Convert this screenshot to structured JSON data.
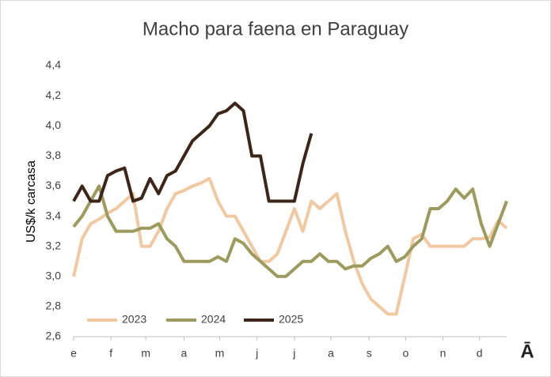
{
  "chart_data": {
    "type": "line",
    "title": "Macho para faena en Paraguay",
    "ylabel": "US$/k carcasa",
    "logo": "Ā",
    "x": [
      0,
      1,
      2,
      3,
      4,
      5,
      6,
      7,
      8,
      9,
      10,
      11,
      12,
      13,
      14,
      15,
      16,
      17,
      18,
      19,
      20,
      21,
      22,
      23,
      24,
      25,
      26,
      27,
      28,
      29,
      30,
      31,
      32,
      33,
      34,
      35,
      36,
      37,
      38,
      39,
      40,
      41,
      42,
      43,
      44,
      45,
      46,
      47,
      48,
      49,
      50,
      51
    ],
    "xlim": [
      0,
      51
    ],
    "xticks": [
      {
        "value": 0,
        "label": "e"
      },
      {
        "value": 4.4,
        "label": "f"
      },
      {
        "value": 8.5,
        "label": "m"
      },
      {
        "value": 13,
        "label": "a"
      },
      {
        "value": 17.2,
        "label": "m"
      },
      {
        "value": 21.6,
        "label": "j"
      },
      {
        "value": 26,
        "label": "j"
      },
      {
        "value": 30.3,
        "label": "a"
      },
      {
        "value": 34.8,
        "label": "s"
      },
      {
        "value": 39.1,
        "label": "o"
      },
      {
        "value": 43.5,
        "label": "n"
      },
      {
        "value": 47.8,
        "label": "d"
      }
    ],
    "ylim": [
      2.6,
      4.4
    ],
    "yticks": [
      {
        "value": 2.6,
        "label": "2,6"
      },
      {
        "value": 2.8,
        "label": "2,8"
      },
      {
        "value": 3.0,
        "label": "3,0"
      },
      {
        "value": 3.2,
        "label": "3,2"
      },
      {
        "value": 3.4,
        "label": "3,4"
      },
      {
        "value": 3.6,
        "label": "3,6"
      },
      {
        "value": 3.8,
        "label": "3,8"
      },
      {
        "value": 4.0,
        "label": "4,0"
      },
      {
        "value": 4.2,
        "label": "4,2"
      },
      {
        "value": 4.4,
        "label": "4,4"
      }
    ],
    "grid": false,
    "legend": "lower left",
    "series": [
      {
        "name": "2023",
        "color": "#f1c8a0",
        "values": [
          3.0,
          3.25,
          3.35,
          3.38,
          3.42,
          3.45,
          3.5,
          3.55,
          3.2,
          3.2,
          3.3,
          3.45,
          3.55,
          3.57,
          3.6,
          3.62,
          3.65,
          3.5,
          3.4,
          3.4,
          3.3,
          3.2,
          3.1,
          3.1,
          3.15,
          3.3,
          3.45,
          3.3,
          3.5,
          3.45,
          3.5,
          3.55,
          3.3,
          3.1,
          2.95,
          2.85,
          2.8,
          2.75,
          2.75,
          3.0,
          3.25,
          3.28,
          3.2,
          3.2,
          3.2,
          3.2,
          3.2,
          3.25,
          3.25,
          3.26,
          3.37,
          3.32
        ]
      },
      {
        "name": "2024",
        "color": "#9c9a5c",
        "values": [
          3.33,
          3.4,
          3.5,
          3.6,
          3.4,
          3.3,
          3.3,
          3.3,
          3.32,
          3.32,
          3.35,
          3.25,
          3.2,
          3.1,
          3.1,
          3.1,
          3.1,
          3.13,
          3.1,
          3.25,
          3.22,
          3.15,
          3.1,
          3.05,
          3.0,
          3.0,
          3.05,
          3.1,
          3.1,
          3.15,
          3.1,
          3.1,
          3.05,
          3.07,
          3.07,
          3.12,
          3.15,
          3.2,
          3.1,
          3.13,
          3.2,
          3.25,
          3.45,
          3.45,
          3.5,
          3.58,
          3.52,
          3.58,
          3.35,
          3.2,
          3.35,
          3.5
        ]
      },
      {
        "name": "2025",
        "color": "#3d2518",
        "values": [
          3.5,
          3.6,
          3.5,
          3.5,
          3.67,
          3.7,
          3.72,
          3.5,
          3.52,
          3.65,
          3.55,
          3.67,
          3.7,
          3.8,
          3.9,
          3.95,
          4.0,
          4.08,
          4.1,
          4.15,
          4.1,
          3.8,
          3.8,
          3.5,
          3.5,
          3.5,
          3.5,
          3.75,
          3.95,
          null,
          null,
          null,
          null,
          null,
          null,
          null,
          null,
          null,
          null,
          null,
          null,
          null,
          null,
          null,
          null,
          null,
          null,
          null,
          null,
          null,
          null,
          null
        ]
      }
    ]
  }
}
